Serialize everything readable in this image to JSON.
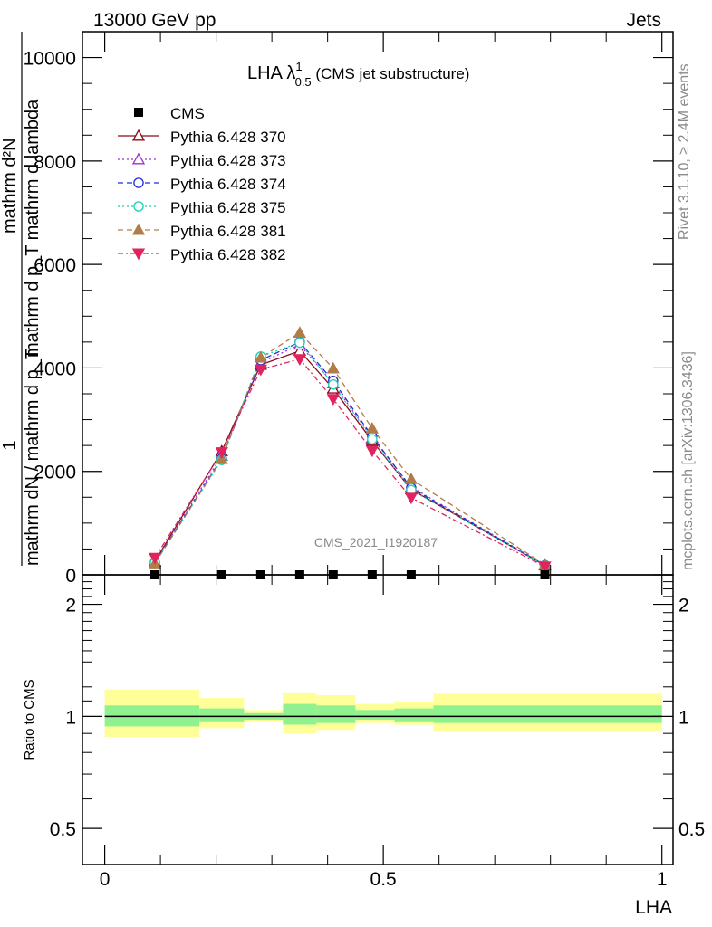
{
  "header": {
    "left": "13000 GeV pp",
    "right": "Jets"
  },
  "side": {
    "rivet": "Rivet 3.1.10, ≥ 2.4M events",
    "mcplots": "mcplots.cern.ch [arXiv:1306.3436]"
  },
  "plot_title": {
    "main": "LHA λ",
    "sup": "1",
    "sub": "0.5",
    "rest": " (CMS jet substructure)"
  },
  "watermark": "CMS_2021_I1920187",
  "ylabel_parts": {
    "one": "1",
    "denominator": "mathrm dN / mathrm d p_T",
    "numerator": "mathrm d²N",
    "numerator_full": "mathrm d p_T mathrm d lambda"
  },
  "ratio_ylabel": "Ratio to CMS",
  "xlabel": "LHA",
  "chart_data": [
    {
      "type": "line",
      "panel": "main",
      "xlim": [
        -0.04,
        1.02
      ],
      "ylim": [
        0,
        10500
      ],
      "yticks": [
        0,
        2000,
        4000,
        6000,
        8000,
        10000
      ],
      "ytick_labels": [
        "0",
        "2000",
        "4000",
        "6000",
        "8000",
        "10000"
      ],
      "legend_position": "top-left",
      "data": {
        "name": "CMS",
        "x": [
          0.09,
          0.21,
          0.28,
          0.35,
          0.41,
          0.48,
          0.55,
          0.79
        ],
        "y": [
          0,
          0,
          0,
          0,
          0,
          0,
          0,
          0
        ]
      },
      "series": [
        {
          "name": "Pythia 6.428 370",
          "color": "#8b0a1a",
          "dash": "",
          "marker": "triangle-open",
          "x": [
            0.09,
            0.21,
            0.28,
            0.35,
            0.41,
            0.48,
            0.55,
            0.79
          ],
          "y": [
            260,
            2390,
            4060,
            4330,
            3600,
            2590,
            1650,
            180
          ]
        },
        {
          "name": "Pythia 6.428 373",
          "color": "#9b30d6",
          "dash": "2,3",
          "marker": "triangle-open",
          "x": [
            0.09,
            0.21,
            0.28,
            0.35,
            0.41,
            0.48,
            0.55,
            0.79
          ],
          "y": [
            250,
            2300,
            4100,
            4450,
            3700,
            2650,
            1700,
            190
          ]
        },
        {
          "name": "Pythia 6.428 374",
          "color": "#1f2fd6",
          "dash": "6,4",
          "marker": "circle-open",
          "x": [
            0.09,
            0.21,
            0.28,
            0.35,
            0.41,
            0.48,
            0.55,
            0.79
          ],
          "y": [
            240,
            2250,
            4150,
            4500,
            3750,
            2680,
            1680,
            185
          ]
        },
        {
          "name": "Pythia 6.428 375",
          "color": "#1ccfb0",
          "dash": "2,3",
          "marker": "circle-open",
          "x": [
            0.09,
            0.21,
            0.28,
            0.35,
            0.41,
            0.48,
            0.55,
            0.79
          ],
          "y": [
            230,
            2220,
            4220,
            4490,
            3680,
            2620,
            1640,
            180
          ]
        },
        {
          "name": "Pythia 6.428 381",
          "color": "#b07d49",
          "dash": "6,4",
          "marker": "triangle-filled",
          "x": [
            0.09,
            0.21,
            0.28,
            0.35,
            0.41,
            0.48,
            0.55,
            0.79
          ],
          "y": [
            220,
            2240,
            4200,
            4680,
            3990,
            2830,
            1850,
            200
          ]
        },
        {
          "name": "Pythia 6.428 382",
          "color": "#e0245e",
          "dash": "6,3,2,3",
          "marker": "triangle-down-filled",
          "x": [
            0.09,
            0.21,
            0.28,
            0.35,
            0.41,
            0.48,
            0.55,
            0.79
          ],
          "y": [
            330,
            2370,
            3970,
            4170,
            3400,
            2400,
            1490,
            160
          ]
        }
      ]
    },
    {
      "type": "area",
      "panel": "ratio",
      "xlim": [
        -0.04,
        1.02
      ],
      "ylim": [
        0.4,
        2.4
      ],
      "log_y": true,
      "yticks": [
        0.5,
        1,
        2
      ],
      "ytick_labels": [
        "0.5",
        "1",
        "2"
      ],
      "xticks": [
        0,
        0.5,
        1
      ],
      "xtick_labels": [
        "0",
        "0.5",
        "1"
      ],
      "reference": 1,
      "bins": [
        {
          "x0": 0.0,
          "x1": 0.17,
          "inner": [
            0.94,
            1.07
          ],
          "outer": [
            0.88,
            1.18
          ]
        },
        {
          "x0": 0.17,
          "x1": 0.25,
          "inner": [
            0.97,
            1.05
          ],
          "outer": [
            0.93,
            1.12
          ]
        },
        {
          "x0": 0.25,
          "x1": 0.32,
          "inner": [
            0.98,
            1.02
          ],
          "outer": [
            0.97,
            1.04
          ]
        },
        {
          "x0": 0.32,
          "x1": 0.38,
          "inner": [
            0.95,
            1.08
          ],
          "outer": [
            0.9,
            1.16
          ]
        },
        {
          "x0": 0.38,
          "x1": 0.45,
          "inner": [
            0.96,
            1.07
          ],
          "outer": [
            0.92,
            1.14
          ]
        },
        {
          "x0": 0.45,
          "x1": 0.52,
          "inner": [
            0.98,
            1.04
          ],
          "outer": [
            0.96,
            1.08
          ]
        },
        {
          "x0": 0.52,
          "x1": 0.59,
          "inner": [
            0.97,
            1.05
          ],
          "outer": [
            0.95,
            1.09
          ]
        },
        {
          "x0": 0.59,
          "x1": 1.0,
          "inner": [
            0.96,
            1.07
          ],
          "outer": [
            0.91,
            1.15
          ]
        }
      ],
      "inner_color": "#8ff28f",
      "outer_color": "#ffff99"
    }
  ]
}
